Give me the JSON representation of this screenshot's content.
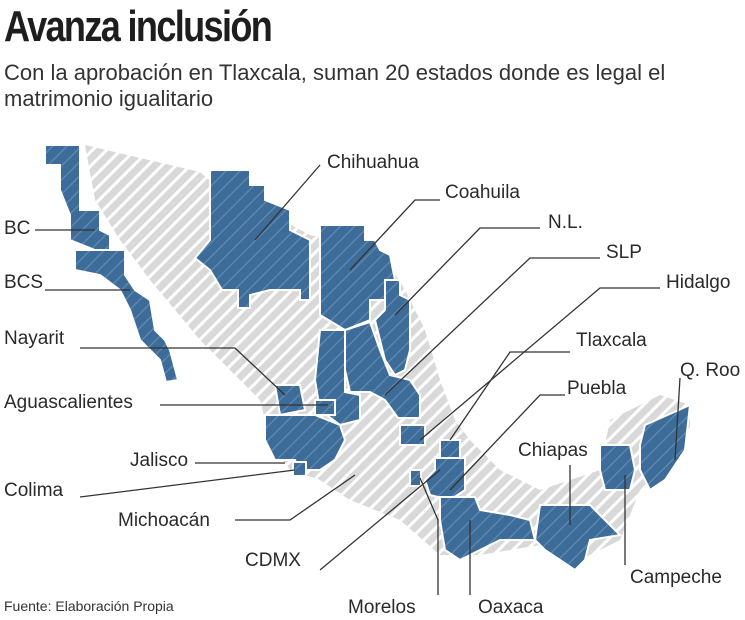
{
  "header": {
    "title": "Avanza inclusión",
    "subtitle": "Con la aprobación en Tlaxcala, suman 20 estados donde es legal el matrimonio igualitario"
  },
  "footer": {
    "source": "Fuente: Elaboración Propia"
  },
  "colors": {
    "legal": "#3d6c99",
    "other": "#d9d9d9",
    "hatch": "#ffffff"
  },
  "states_labeled": [
    "Chihuahua",
    "Coahuila",
    "N.L.",
    "SLP",
    "Hidalgo",
    "Tlaxcala",
    "Q. Roo",
    "Puebla",
    "Chiapas",
    "Campeche",
    "Oaxaca",
    "Morelos",
    "CDMX",
    "Michoacán",
    "Colima",
    "Jalisco",
    "Aguascalientes",
    "Nayarit",
    "BCS",
    "BC"
  ]
}
